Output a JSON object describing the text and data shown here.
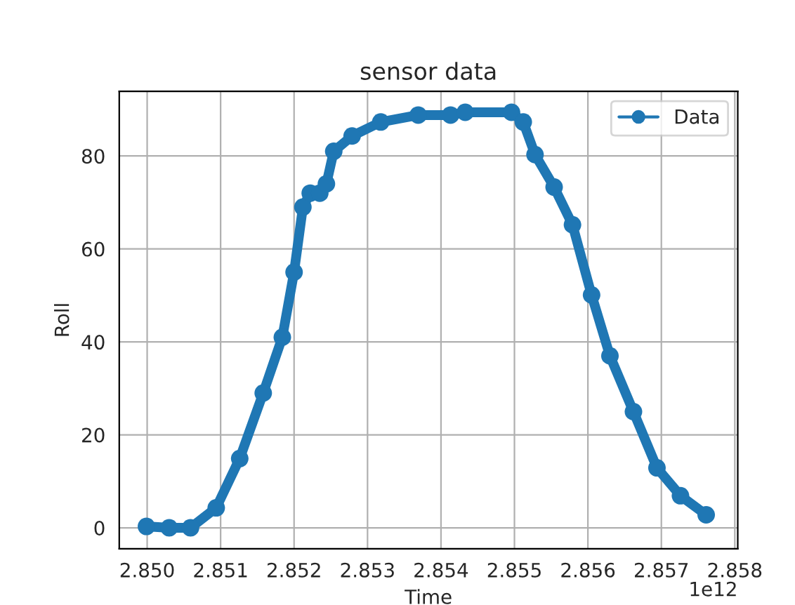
{
  "chart_data": {
    "type": "line",
    "title": "sensor data",
    "xlabel": "Time",
    "ylabel": "Roll",
    "x": [
      2.84999,
      2.8503,
      2.85059,
      2.85094,
      2.85126,
      2.85158,
      2.85184,
      2.852,
      2.85212,
      2.85222,
      2.85235,
      2.85244,
      2.85254,
      2.85279,
      2.85318,
      2.85369,
      2.85413,
      2.85433,
      2.85496,
      2.85512,
      2.85528,
      2.85554,
      2.85579,
      2.85605,
      2.8563,
      2.85662,
      2.85694,
      2.85726,
      2.85761
    ],
    "series": [
      {
        "name": "Data",
        "color": "#1f77b4",
        "values": [
          0.3,
          0,
          0,
          4.3,
          14.9,
          29,
          41,
          55,
          69,
          72,
          72,
          74,
          81,
          84.3,
          87.3,
          88.8,
          88.8,
          89.4,
          89.4,
          87.3,
          80.3,
          73.3,
          65.2,
          50.1,
          37,
          25,
          12.9,
          6.9,
          2.8
        ]
      }
    ],
    "xlim": [
      2.84962,
      2.85804
    ],
    "xticks": [
      {
        "value": 2.85,
        "label": "2.850"
      },
      {
        "value": 2.851,
        "label": "2.851"
      },
      {
        "value": 2.852,
        "label": "2.852"
      },
      {
        "value": 2.853,
        "label": "2.853"
      },
      {
        "value": 2.854,
        "label": "2.854"
      },
      {
        "value": 2.855,
        "label": "2.855"
      },
      {
        "value": 2.856,
        "label": "2.856"
      },
      {
        "value": 2.857,
        "label": "2.857"
      },
      {
        "value": 2.858,
        "label": "2.858"
      }
    ],
    "ylim": [
      -4.5,
      93.9
    ],
    "yticks": [
      0,
      20,
      40,
      60,
      80
    ],
    "annotations": [
      "1e12"
    ],
    "grid": true,
    "legend": "top right",
    "marker": "circle",
    "line_style": "solid"
  }
}
